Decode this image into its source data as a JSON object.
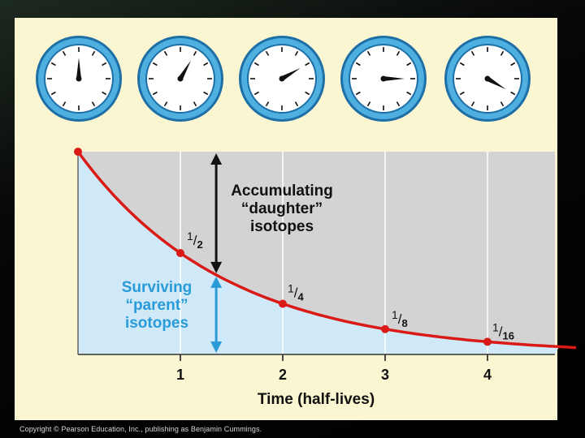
{
  "colors": {
    "panel_background": "#fbf6d2",
    "daughter_region": "#d3d3d3",
    "parent_region": "#cfe9f8",
    "decay_curve": "#d91a17",
    "surviving_label": "#2a9bd8",
    "clock_ring": "#4fb0e0",
    "clock_ring_dark": "#1e6fa6"
  },
  "clocks": [
    {
      "hand_minutes": 0
    },
    {
      "hand_minutes": 5
    },
    {
      "hand_minutes": 10
    },
    {
      "hand_minutes": 15
    },
    {
      "hand_minutes": 20
    }
  ],
  "chart_data": {
    "type": "line",
    "x": [
      0,
      1,
      2,
      3,
      4,
      4.7
    ],
    "y": [
      1,
      0.5,
      0.25,
      0.125,
      0.0625,
      0.039
    ],
    "marked_points": [
      {
        "x": 0,
        "y": 1,
        "label": ""
      },
      {
        "x": 1,
        "y": 0.5,
        "label": "1/2"
      },
      {
        "x": 2,
        "y": 0.25,
        "label": "1/4"
      },
      {
        "x": 3,
        "y": 0.125,
        "label": "1/8"
      },
      {
        "x": 4,
        "y": 0.0625,
        "label": "1/16"
      }
    ],
    "xlabel": "Time (half-lives)",
    "x_ticks": [
      "1",
      "2",
      "3",
      "4"
    ],
    "x_tick_values": [
      1,
      2,
      3,
      4
    ],
    "xlim": [
      0,
      4.7
    ],
    "ylim": [
      0,
      1
    ],
    "grid": "vertical",
    "annotations": {
      "daughter": [
        "Accumulating",
        "“daughter”",
        "isotopes"
      ],
      "parent": [
        "Surviving",
        "“parent”",
        "isotopes"
      ]
    },
    "arrow_x": 1.35
  },
  "copyright": "Copyright © Pearson Education, Inc., publishing as Benjamin Cummings."
}
